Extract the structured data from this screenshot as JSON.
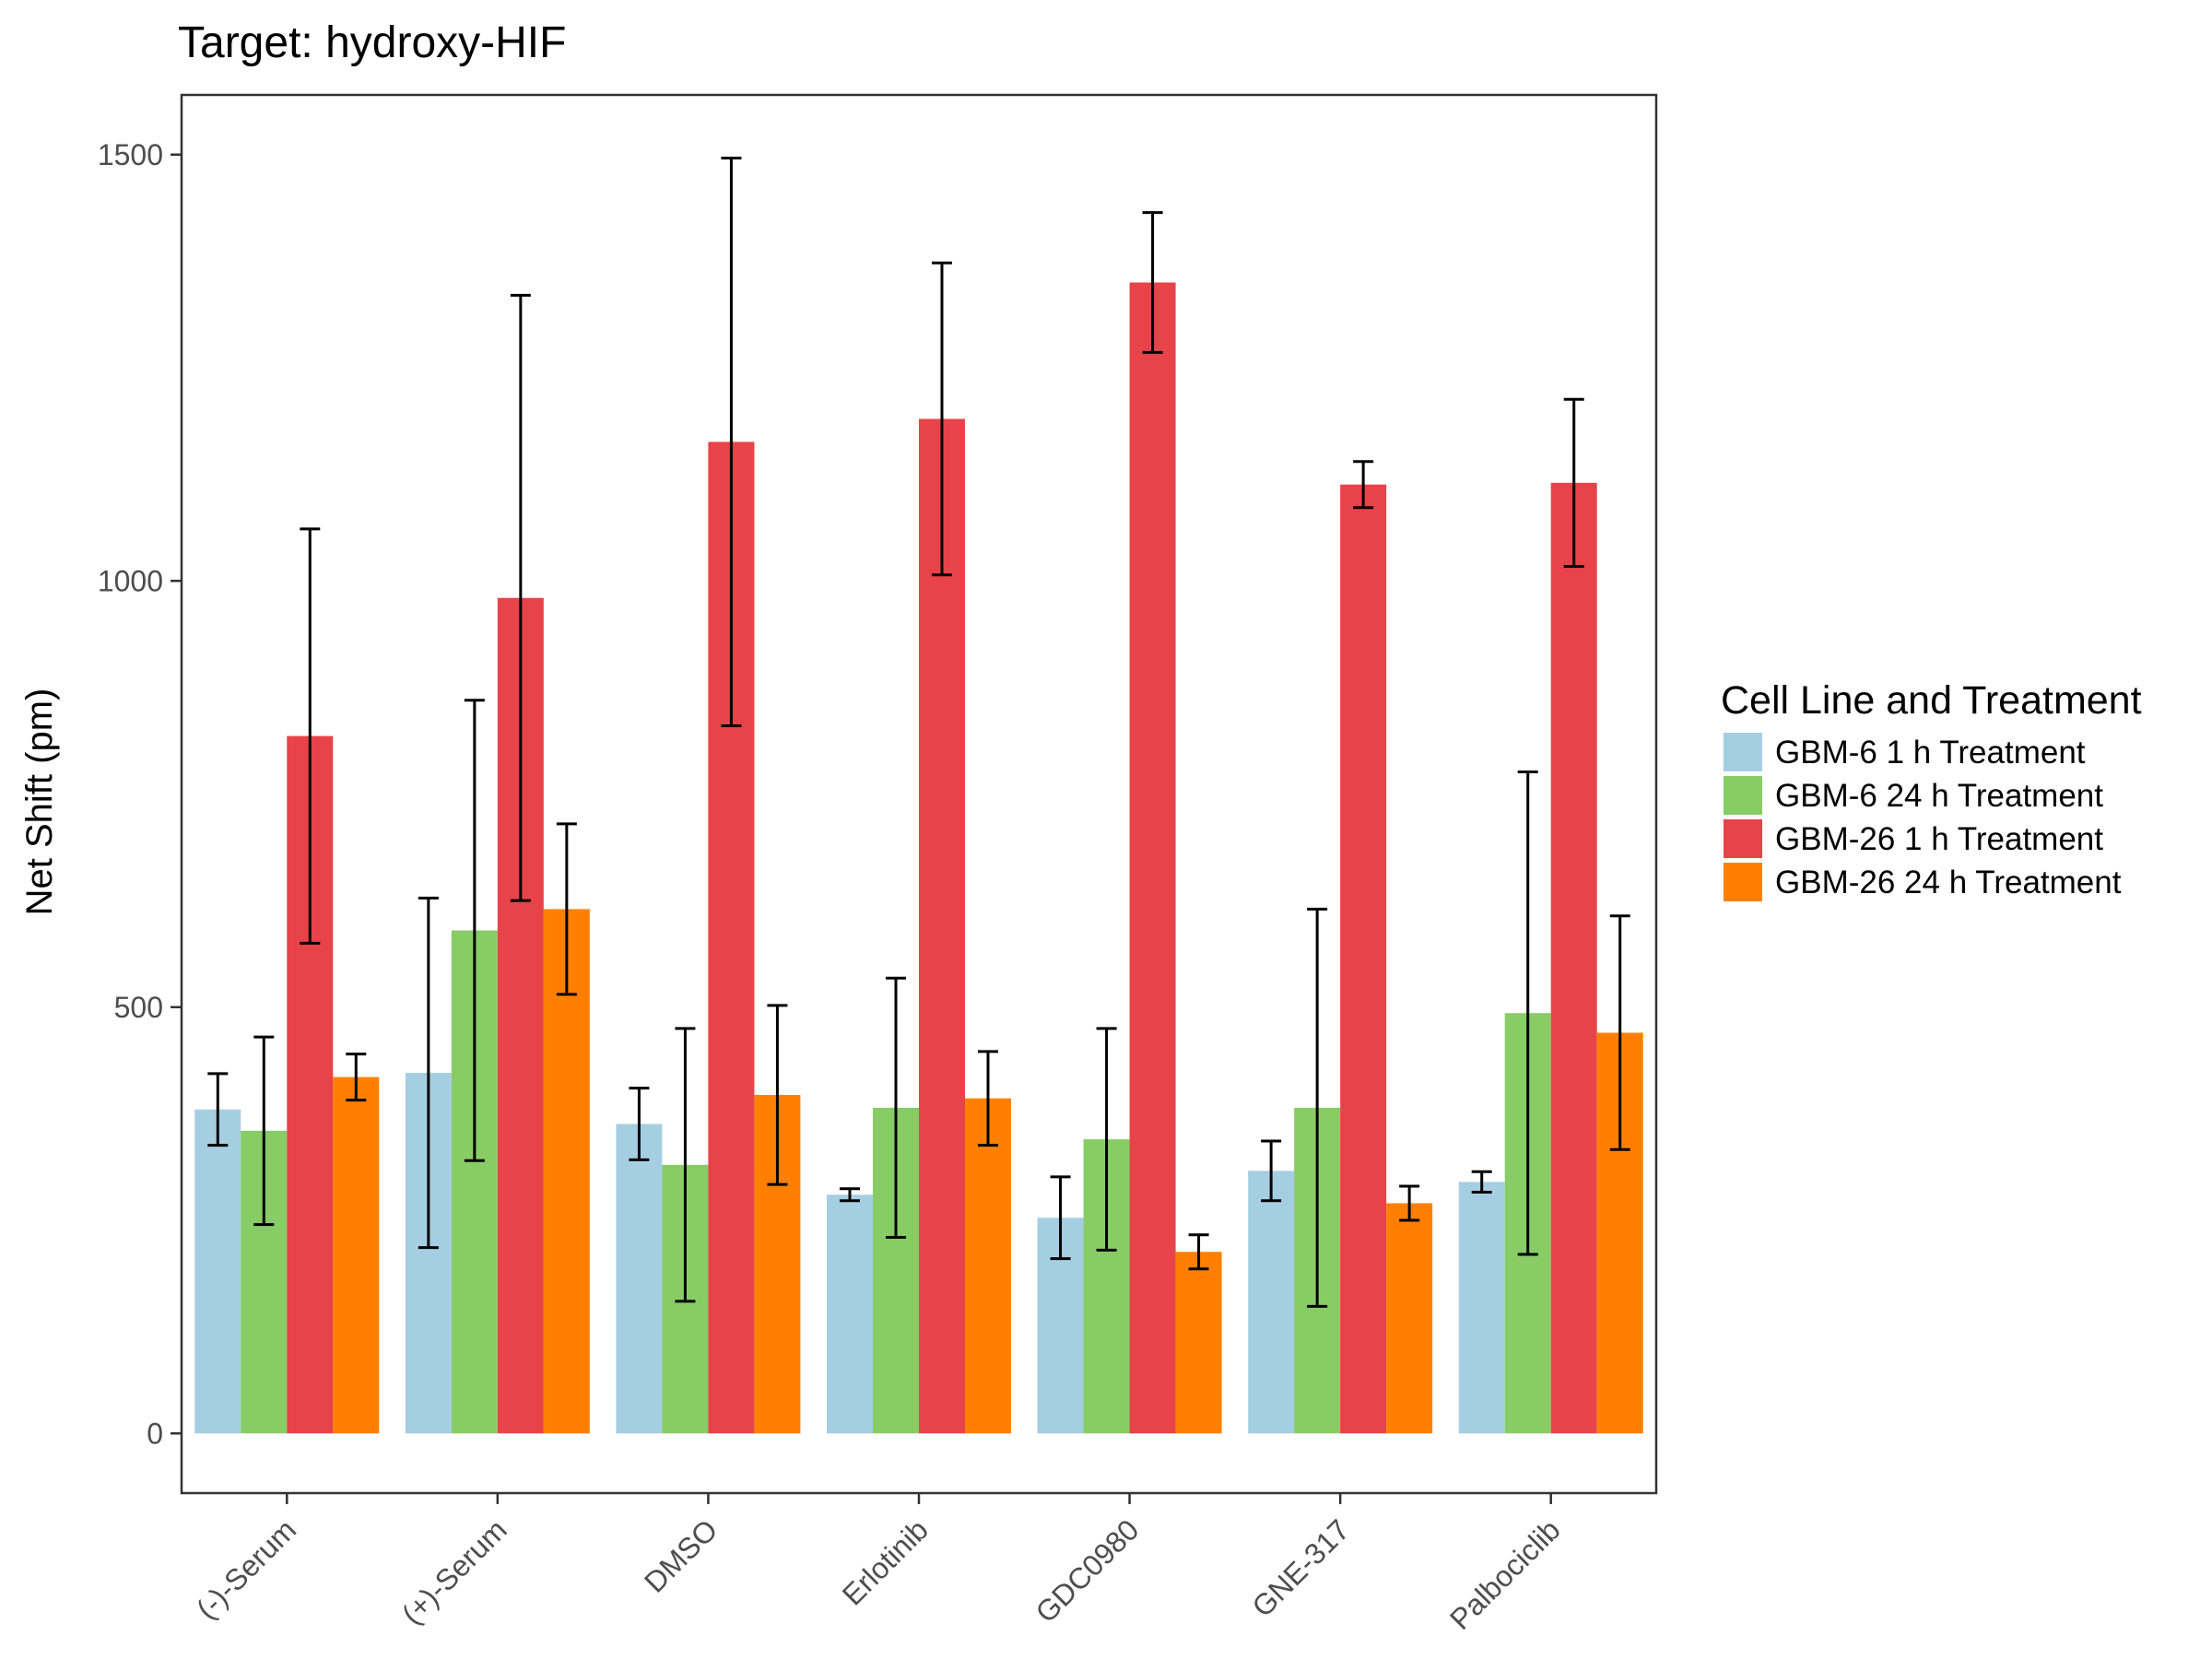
{
  "chart_data": {
    "type": "bar",
    "title": "Target: hydroxy-HIF",
    "xlabel": "",
    "ylabel": "Net Shift (pm)",
    "ylim": [
      -70,
      1570
    ],
    "yticks": [
      0,
      500,
      1000,
      1500
    ],
    "categories": [
      "(-)-Serum",
      "(+)-Serum",
      "DMSO",
      "Erlotinib",
      "GDC0980",
      "GNE-317",
      "Palbociclib"
    ],
    "legend": {
      "title": "Cell Line and Treatment",
      "position": "right"
    },
    "grid": false,
    "series": [
      {
        "name": "GBM-6 1 h Treatment",
        "color": "#a6cee3",
        "values": [
          380,
          423,
          363,
          280,
          253,
          308,
          295
        ],
        "error": [
          42,
          205,
          42,
          7,
          48,
          35,
          12
        ]
      },
      {
        "name": "GBM-6 24 h Treatment",
        "color": "#88cc66",
        "values": [
          355,
          590,
          315,
          382,
          345,
          382,
          493
        ],
        "error": [
          110,
          270,
          160,
          152,
          130,
          233,
          283
        ]
      },
      {
        "name": "GBM-26 1 h Treatment",
        "color": "#e84348",
        "values": [
          818,
          980,
          1163,
          1190,
          1350,
          1113,
          1115
        ],
        "error": [
          243,
          355,
          333,
          183,
          82,
          27,
          98
        ]
      },
      {
        "name": "GBM-26 24 h Treatment",
        "color": "#ff8000",
        "values": [
          418,
          615,
          397,
          393,
          213,
          270,
          470
        ],
        "error": [
          27,
          100,
          105,
          55,
          20,
          20,
          137
        ]
      }
    ]
  }
}
